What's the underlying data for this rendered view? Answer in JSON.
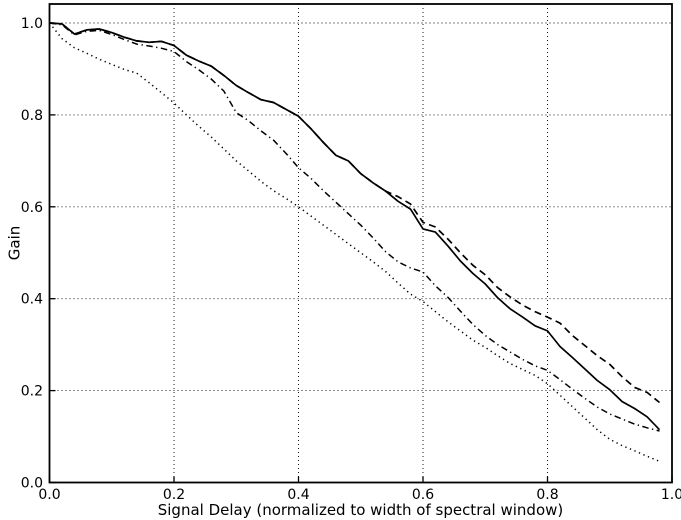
{
  "chart_data": {
    "type": "line",
    "title": "",
    "xlabel": "Signal Delay (normalized to width of spectral window)",
    "ylabel": "Gain",
    "xlim": [
      0.0,
      1.0
    ],
    "ylim": [
      0.0,
      1.04
    ],
    "grid": "dotted",
    "legend": "none",
    "line_color": "#000000",
    "x_ticks": [
      {
        "value": 0.0,
        "label": "0.0"
      },
      {
        "value": 0.2,
        "label": "0.2"
      },
      {
        "value": 0.4,
        "label": "0.4"
      },
      {
        "value": 0.6,
        "label": "0.6"
      },
      {
        "value": 0.8,
        "label": "0.8"
      },
      {
        "value": 1.0,
        "label": "1.0"
      }
    ],
    "y_ticks": [
      {
        "value": 0.0,
        "label": "0.0"
      },
      {
        "value": 0.2,
        "label": "0.2"
      },
      {
        "value": 0.4,
        "label": "0.4"
      },
      {
        "value": 0.6,
        "label": "0.6"
      },
      {
        "value": 0.8,
        "label": "0.8"
      },
      {
        "value": 1.0,
        "label": "1.0"
      }
    ],
    "x": [
      0.0,
      0.02,
      0.04,
      0.06,
      0.08,
      0.1,
      0.12,
      0.14,
      0.16,
      0.18,
      0.2,
      0.22,
      0.24,
      0.26,
      0.28,
      0.3,
      0.32,
      0.34,
      0.36,
      0.38,
      0.4,
      0.42,
      0.44,
      0.46,
      0.48,
      0.5,
      0.52,
      0.54,
      0.56,
      0.58,
      0.6,
      0.62,
      0.64,
      0.66,
      0.68,
      0.7,
      0.72,
      0.74,
      0.76,
      0.78,
      0.8,
      0.82,
      0.84,
      0.86,
      0.88,
      0.9,
      0.92,
      0.94,
      0.96,
      0.98
    ],
    "series": [
      {
        "name": "dotted-line",
        "style": "dotted",
        "values": [
          1.0,
          0.966,
          0.946,
          0.934,
          0.921,
          0.91,
          0.899,
          0.891,
          0.87,
          0.848,
          0.826,
          0.8,
          0.775,
          0.752,
          0.726,
          0.7,
          0.678,
          0.655,
          0.635,
          0.618,
          0.6,
          0.58,
          0.56,
          0.54,
          0.52,
          0.5,
          0.48,
          0.459,
          0.434,
          0.41,
          0.394,
          0.372,
          0.35,
          0.33,
          0.31,
          0.294,
          0.276,
          0.259,
          0.246,
          0.233,
          0.215,
          0.19,
          0.165,
          0.14,
          0.115,
          0.094,
          0.08,
          0.069,
          0.057,
          0.046
        ]
      },
      {
        "name": "dash-dot-line",
        "style": "dashdot",
        "values": [
          1.0,
          0.996,
          0.974,
          0.982,
          0.984,
          0.975,
          0.964,
          0.954,
          0.95,
          0.945,
          0.938,
          0.916,
          0.898,
          0.878,
          0.852,
          0.805,
          0.787,
          0.765,
          0.745,
          0.716,
          0.685,
          0.662,
          0.635,
          0.61,
          0.585,
          0.56,
          0.532,
          0.502,
          0.48,
          0.467,
          0.458,
          0.428,
          0.403,
          0.373,
          0.344,
          0.32,
          0.3,
          0.284,
          0.268,
          0.254,
          0.244,
          0.224,
          0.203,
          0.183,
          0.164,
          0.149,
          0.138,
          0.127,
          0.119,
          0.112
        ]
      },
      {
        "name": "solid-line",
        "style": "solid",
        "values": [
          1.0,
          0.998,
          0.976,
          0.985,
          0.987,
          0.979,
          0.969,
          0.961,
          0.958,
          0.96,
          0.951,
          0.93,
          0.917,
          0.906,
          0.886,
          0.864,
          0.848,
          0.833,
          0.827,
          0.812,
          0.797,
          0.77,
          0.74,
          0.712,
          0.7,
          0.672,
          0.652,
          0.634,
          0.612,
          0.595,
          0.552,
          0.545,
          0.515,
          0.482,
          0.455,
          0.432,
          0.402,
          0.378,
          0.36,
          0.341,
          0.33,
          0.296,
          0.272,
          0.247,
          0.222,
          0.202,
          0.176,
          0.161,
          0.143,
          0.115
        ]
      },
      {
        "name": "dashed-line",
        "style": "dashed",
        "values": [
          1.0,
          0.998,
          0.976,
          0.985,
          0.987,
          0.979,
          0.969,
          0.961,
          0.958,
          0.96,
          0.951,
          0.93,
          0.917,
          0.906,
          0.886,
          0.864,
          0.848,
          0.833,
          0.827,
          0.812,
          0.797,
          0.77,
          0.74,
          0.712,
          0.7,
          0.672,
          0.652,
          0.634,
          0.622,
          0.606,
          0.566,
          0.556,
          0.53,
          0.5,
          0.473,
          0.452,
          0.424,
          0.404,
          0.386,
          0.372,
          0.36,
          0.347,
          0.32,
          0.298,
          0.276,
          0.257,
          0.23,
          0.207,
          0.196,
          0.174
        ]
      }
    ]
  }
}
